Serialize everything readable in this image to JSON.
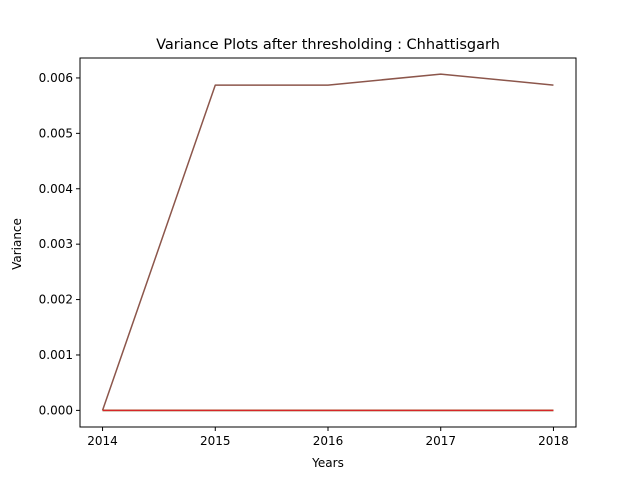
{
  "chart_data": {
    "type": "line",
    "title": "Variance Plots after thresholding : Chhattisgarh",
    "xlabel": "Years",
    "ylabel": "Variance",
    "x": [
      2014,
      2015,
      2016,
      2017,
      2018
    ],
    "xlim": [
      2013.8,
      2018.2
    ],
    "ylim": [
      -0.0003,
      0.00636
    ],
    "xticks": [
      "2014",
      "2015",
      "2016",
      "2017",
      "2018"
    ],
    "yticks": [
      "0.000",
      "0.001",
      "0.002",
      "0.003",
      "0.004",
      "0.005",
      "0.006"
    ],
    "grid": false,
    "series": [
      {
        "values": [
          0.0,
          0.00587,
          0.00587,
          0.00607,
          0.00587
        ],
        "color": "#8c564b"
      },
      {
        "values": [
          0.0,
          0.0,
          0.0,
          0.0,
          0.0
        ],
        "color": "#1f77b4"
      },
      {
        "values": [
          0.0,
          0.0,
          0.0,
          0.0,
          0.0
        ],
        "color": "#ff7f0e"
      },
      {
        "values": [
          0.0,
          0.0,
          0.0,
          0.0,
          0.0
        ],
        "color": "#2ca02c"
      },
      {
        "values": [
          0.0,
          0.0,
          0.0,
          0.0,
          0.0
        ],
        "color": "#d62728"
      }
    ]
  }
}
